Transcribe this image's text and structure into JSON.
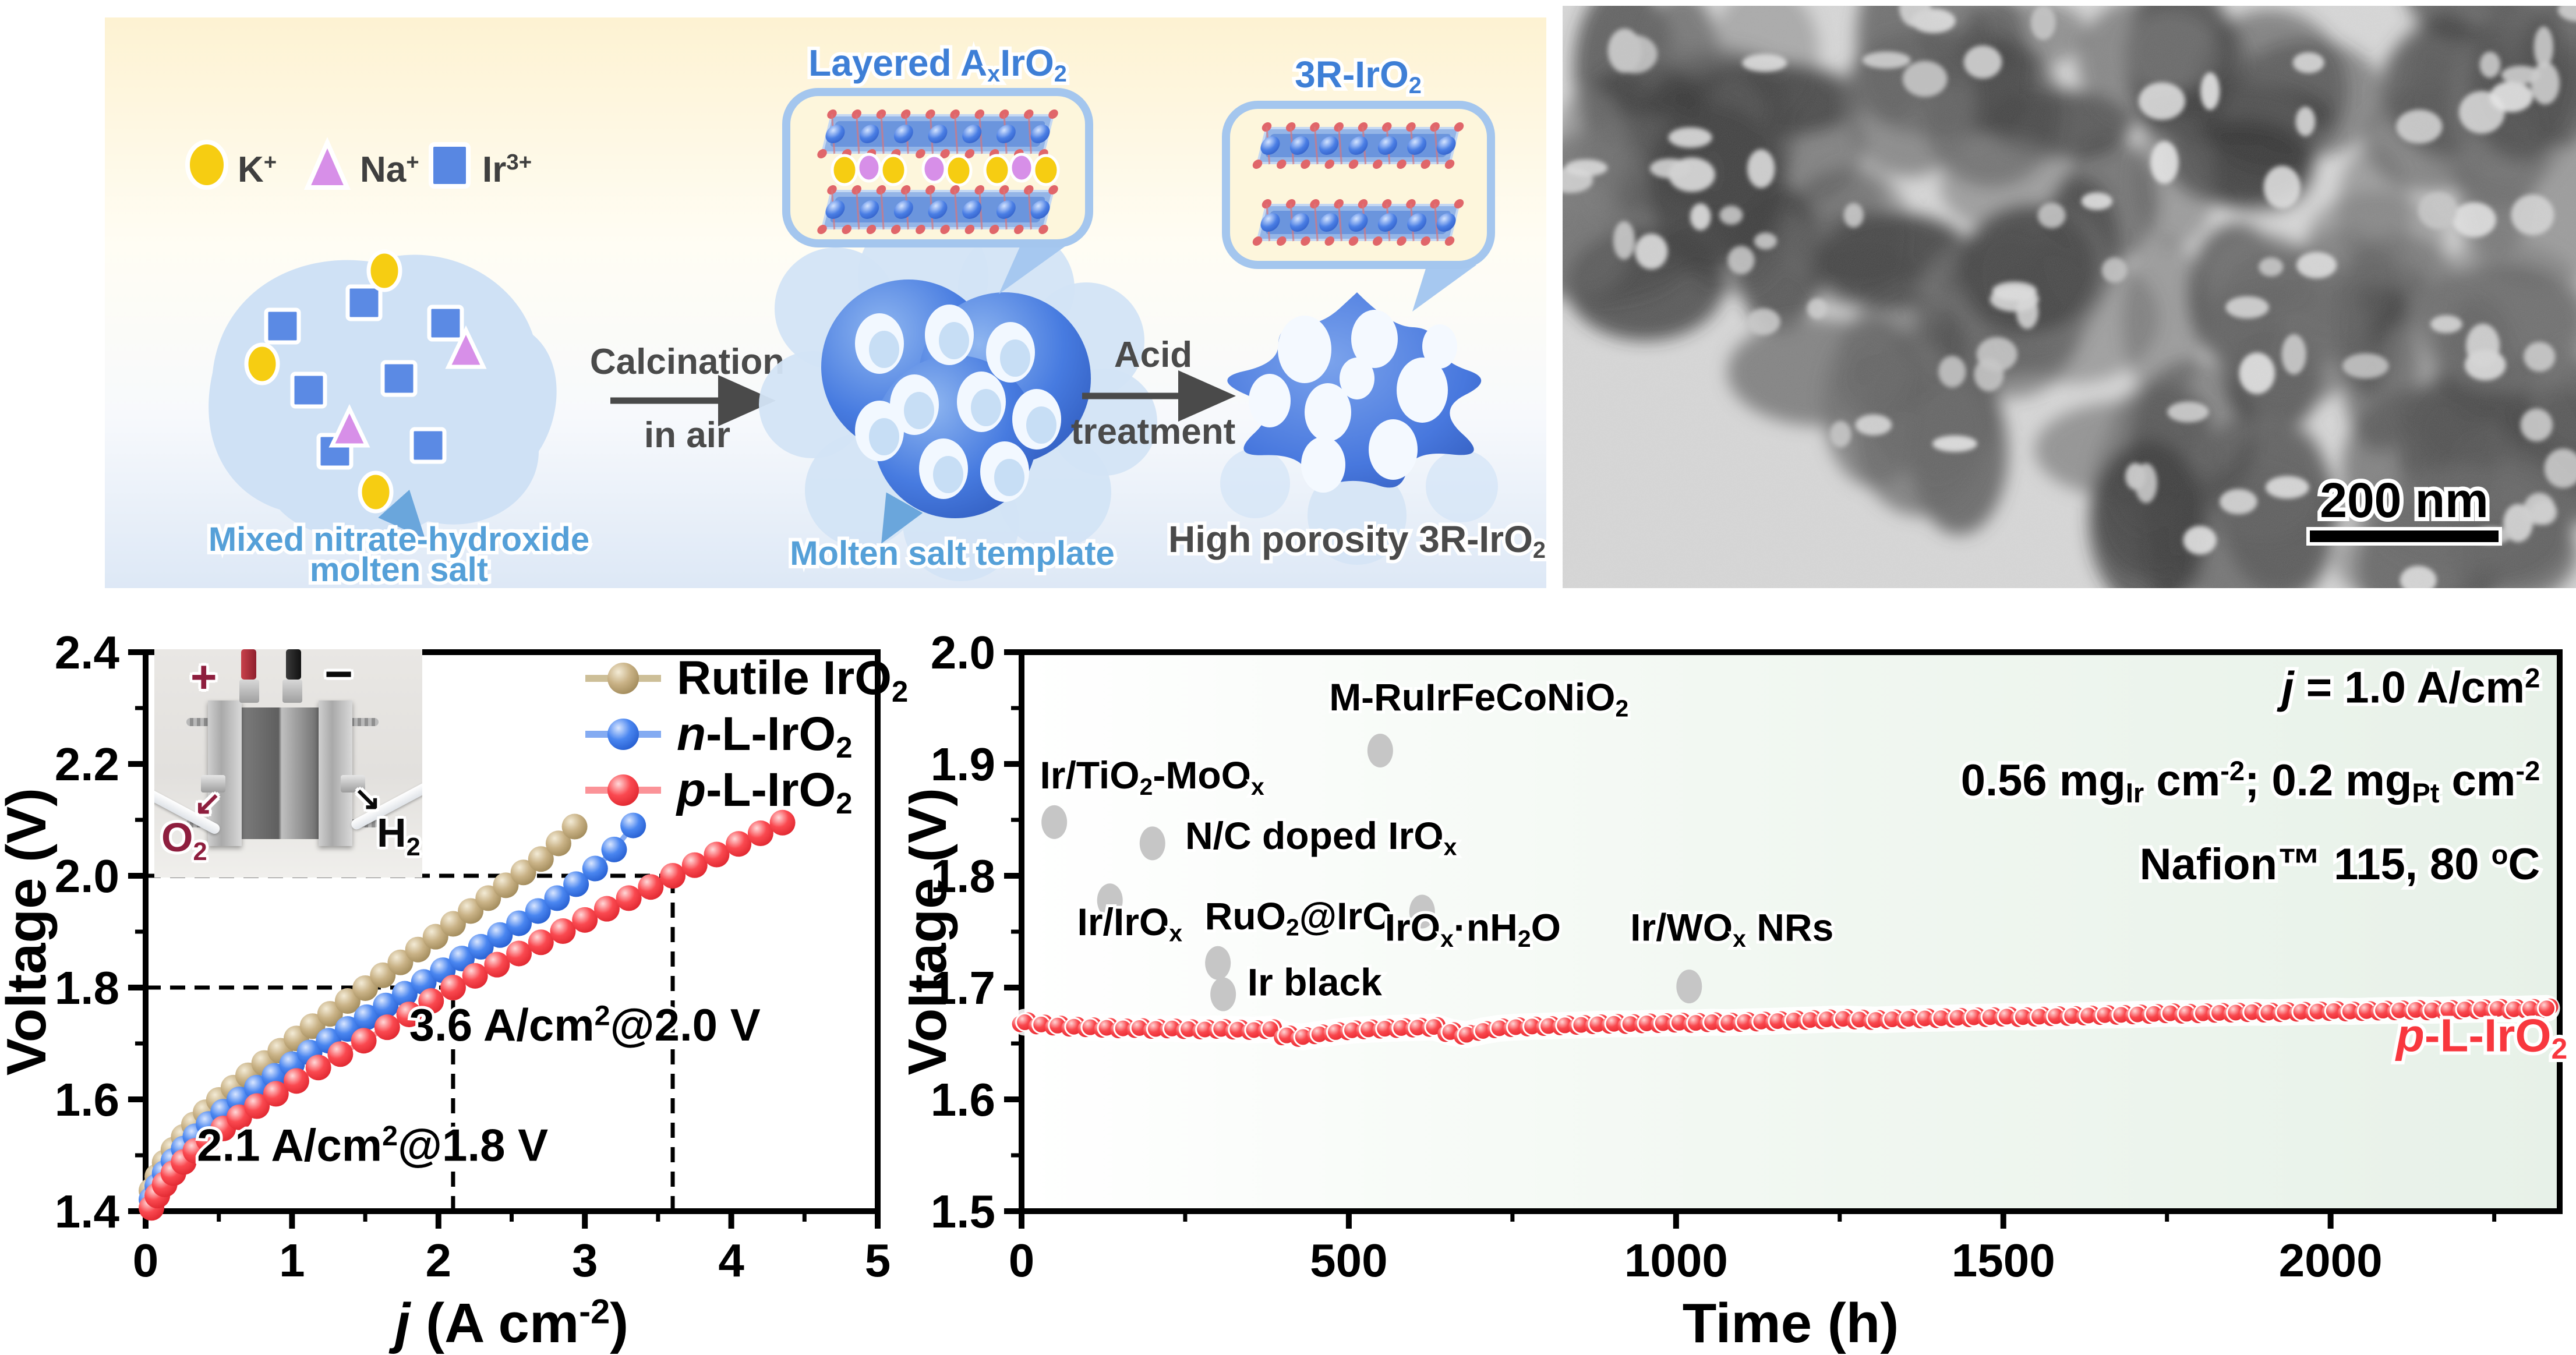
{
  "schematic": {
    "legend": [
      {
        "shape": "ellipse",
        "color": "#f6cd12",
        "label": "K^+^"
      },
      {
        "shape": "triangle",
        "color": "#d78fe8",
        "label": "Na^+^"
      },
      {
        "shape": "square",
        "color": "#5887e2",
        "label": "Ir^3+^"
      }
    ],
    "bubble1_title": "Layered A_x_IrO_2_",
    "bubble2_title": "3R-IrO_2_",
    "step1_line1": "Calcination",
    "step1_line2": "in air",
    "step2_line1": "Acid",
    "step2_line2": "treatment",
    "caption_blob_lines": [
      "Mixed nitrate-hydroxide",
      "molten salt"
    ],
    "caption_cluster": "Molten salt template",
    "caption_product": "High porosity 3R-IrO_2_",
    "text_color_blue": "#55a0d8",
    "text_color_gray": "#4a4a4a"
  },
  "tem": {
    "scale_label": "200 nm"
  },
  "chart_data": [
    {
      "type": "line",
      "title": "",
      "xlabel": "[i]j[/i] (A cm^-2^)",
      "ylabel": "Voltage (V)",
      "xlim": [
        0,
        5
      ],
      "ylim": [
        1.4,
        2.4
      ],
      "xticks": [
        0,
        1,
        2,
        3,
        4,
        5
      ],
      "yticks": [
        1.4,
        1.6,
        1.8,
        2.0,
        2.2,
        2.4
      ],
      "x_minor": [
        0.5,
        1.5,
        2.5,
        3.5,
        4.5
      ],
      "y_minor": [
        1.5,
        1.7,
        1.9,
        2.1,
        2.3
      ],
      "grid": false,
      "legend_position": "top-right-inside",
      "series": [
        {
          "name": "Rutile IrO_2_",
          "color": "#b29a6d",
          "line_color": "#cdbf98",
          "points": [
            [
              0.04,
              1.437
            ],
            [
              0.08,
              1.462
            ],
            [
              0.13,
              1.487
            ],
            [
              0.19,
              1.51
            ],
            [
              0.26,
              1.533
            ],
            [
              0.33,
              1.555
            ],
            [
              0.41,
              1.577
            ],
            [
              0.5,
              1.599
            ],
            [
              0.6,
              1.621
            ],
            [
              0.7,
              1.643
            ],
            [
              0.81,
              1.665
            ],
            [
              0.92,
              1.687
            ],
            [
              1.03,
              1.709
            ],
            [
              1.14,
              1.731
            ],
            [
              1.26,
              1.753
            ],
            [
              1.38,
              1.776
            ],
            [
              1.5,
              1.799
            ],
            [
              1.62,
              1.822
            ],
            [
              1.74,
              1.845
            ],
            [
              1.86,
              1.868
            ],
            [
              1.98,
              1.891
            ],
            [
              2.1,
              1.914
            ],
            [
              2.22,
              1.937
            ],
            [
              2.34,
              1.96
            ],
            [
              2.46,
              1.983
            ],
            [
              2.58,
              2.006
            ],
            [
              2.7,
              2.03
            ],
            [
              2.82,
              2.058
            ],
            [
              2.93,
              2.088
            ]
          ]
        },
        {
          "name": "[i]n[/i]-L-IrO_2_",
          "color": "#2e6fe8",
          "line_color": "#84abf2",
          "points": [
            [
              0.04,
              1.421
            ],
            [
              0.08,
              1.445
            ],
            [
              0.13,
              1.468
            ],
            [
              0.19,
              1.49
            ],
            [
              0.26,
              1.512
            ],
            [
              0.34,
              1.534
            ],
            [
              0.43,
              1.556
            ],
            [
              0.53,
              1.578
            ],
            [
              0.64,
              1.6
            ],
            [
              0.76,
              1.621
            ],
            [
              0.88,
              1.642
            ],
            [
              1.0,
              1.663
            ],
            [
              1.12,
              1.684
            ],
            [
              1.25,
              1.705
            ],
            [
              1.38,
              1.726
            ],
            [
              1.51,
              1.747
            ],
            [
              1.64,
              1.768
            ],
            [
              1.77,
              1.789
            ],
            [
              1.9,
              1.81
            ],
            [
              2.03,
              1.831
            ],
            [
              2.16,
              1.852
            ],
            [
              2.29,
              1.873
            ],
            [
              2.42,
              1.894
            ],
            [
              2.55,
              1.915
            ],
            [
              2.68,
              1.937
            ],
            [
              2.81,
              1.96
            ],
            [
              2.94,
              1.985
            ],
            [
              3.07,
              2.013
            ],
            [
              3.2,
              2.047
            ],
            [
              3.33,
              2.09
            ]
          ]
        },
        {
          "name": "[i]p[/i]-L-IrO_2_",
          "color": "#f8373e",
          "line_color": "#fb9398",
          "points": [
            [
              0.04,
              1.406
            ],
            [
              0.08,
              1.428
            ],
            [
              0.13,
              1.448
            ],
            [
              0.19,
              1.468
            ],
            [
              0.26,
              1.488
            ],
            [
              0.34,
              1.508
            ],
            [
              0.43,
              1.528
            ],
            [
              0.53,
              1.548
            ],
            [
              0.64,
              1.568
            ],
            [
              0.76,
              1.588
            ],
            [
              0.89,
              1.61
            ],
            [
              1.03,
              1.633
            ],
            [
              1.18,
              1.657
            ],
            [
              1.33,
              1.681
            ],
            [
              1.49,
              1.705
            ],
            [
              1.65,
              1.729
            ],
            [
              1.8,
              1.752
            ],
            [
              1.95,
              1.776
            ],
            [
              2.1,
              1.8
            ],
            [
              2.25,
              1.821
            ],
            [
              2.4,
              1.841
            ],
            [
              2.55,
              1.861
            ],
            [
              2.7,
              1.881
            ],
            [
              2.85,
              1.901
            ],
            [
              3.0,
              1.921
            ],
            [
              3.15,
              1.941
            ],
            [
              3.3,
              1.96
            ],
            [
              3.45,
              1.98
            ],
            [
              3.6,
              2.0
            ],
            [
              3.75,
              2.019
            ],
            [
              3.9,
              2.038
            ],
            [
              4.05,
              2.057
            ],
            [
              4.2,
              2.076
            ],
            [
              4.35,
              2.095
            ]
          ]
        }
      ],
      "guides": [
        {
          "type": "h",
          "y": 2.0,
          "x0": 0,
          "x1": 3.6
        },
        {
          "type": "v",
          "x": 3.6,
          "y0": 1.4,
          "y1": 2.0
        },
        {
          "type": "h",
          "y": 1.8,
          "x0": 0,
          "x1": 2.1
        },
        {
          "type": "v",
          "x": 2.1,
          "y0": 1.4,
          "y1": 1.8
        }
      ],
      "annotations": [
        {
          "text": "3.6 A/cm^2^@2.0 V",
          "x": 3.0,
          "y": 1.705
        },
        {
          "text": "2.1 A/cm^2^@1.8 V",
          "x": 1.55,
          "y": 1.49
        }
      ],
      "inset": {
        "plus": "+",
        "minus": "−",
        "o2": "O_2_",
        "h2": "H_2_",
        "o2_arrow": "↙",
        "h2_arrow": "↘"
      }
    },
    {
      "type": "scatter",
      "title": "",
      "xlabel": "Time (h)",
      "ylabel": "Voltage (V)",
      "xlim": [
        0,
        2350
      ],
      "ylim": [
        1.5,
        2.0
      ],
      "xticks": [
        0,
        500,
        1000,
        1500,
        2000
      ],
      "yticks": [
        1.5,
        1.6,
        1.7,
        1.8,
        1.9,
        2.0
      ],
      "x_minor": [
        250,
        750,
        1250,
        1750,
        2250
      ],
      "y_minor": [
        1.55,
        1.65,
        1.75,
        1.85,
        1.95
      ],
      "grid": false,
      "bg_tint": [
        "#ffffff",
        "#f2f8f2",
        "#e7f1e8"
      ],
      "conditions": [
        {
          "text": "[i]j[/i] = 1.0 A/cm^2^",
          "x": 2320,
          "y": 1.955
        },
        {
          "text": "0.56 mg_Ir_ cm^-2^; 0.2 mg_Pt_ cm^-2^",
          "x": 2320,
          "y": 1.872
        },
        {
          "text": "Nafion™ 115, 80 ^o^C",
          "x": 2320,
          "y": 1.797
        }
      ],
      "series_label": {
        "text": "[i]p[/i]-L-IrO_2_",
        "x": 2100,
        "y": 1.643,
        "color": "#f8373e"
      },
      "competitors": [
        {
          "label": "Ir/TiO_2_-MoO_x_",
          "label_x": 28,
          "label_y": 1.878,
          "dot_x": 50,
          "dot_y": 1.848
        },
        {
          "label": "Ir/IrO_x_",
          "label_x": 85,
          "label_y": 1.747,
          "dot_x": 135,
          "dot_y": 1.778
        },
        {
          "label": "N/C doped IrO_x_",
          "label_x": 250,
          "label_y": 1.824,
          "dot_x": 200,
          "dot_y": 1.829
        },
        {
          "label": "RuO_2_@IrO_x_",
          "label_x": 280,
          "label_y": 1.752,
          "dot_x": 300,
          "dot_y": 1.722
        },
        {
          "label": "Ir black",
          "label_x": 345,
          "label_y": 1.693,
          "dot_x": 308,
          "dot_y": 1.694
        },
        {
          "label": "M-RuIrFeCoNiO_2_",
          "label_x": 470,
          "label_y": 1.948,
          "dot_x": 548,
          "dot_y": 1.912
        },
        {
          "label": "IrO_x_·nH_2_O",
          "label_x": 555,
          "label_y": 1.742,
          "dot_x": 612,
          "dot_y": 1.768
        },
        {
          "label": "Ir/WO_x_ NRs",
          "label_x": 930,
          "label_y": 1.742,
          "dot_x": 1020,
          "dot_y": 1.701
        }
      ],
      "stability_series": {
        "name": "[i]p[/i]-L-IrO_2_",
        "color": "#f8373e",
        "points": [
          [
            5,
            1.669
          ],
          [
            30,
            1.667
          ],
          [
            55,
            1.666
          ],
          [
            80,
            1.665
          ],
          [
            105,
            1.6645
          ],
          [
            130,
            1.664
          ],
          [
            155,
            1.6635
          ],
          [
            180,
            1.6638
          ],
          [
            205,
            1.663
          ],
          [
            230,
            1.6634
          ],
          [
            255,
            1.6628
          ],
          [
            280,
            1.6625
          ],
          [
            305,
            1.663
          ],
          [
            330,
            1.6624
          ],
          [
            355,
            1.662
          ],
          [
            380,
            1.6628
          ],
          [
            405,
            1.6572
          ],
          [
            430,
            1.6558
          ],
          [
            455,
            1.6582
          ],
          [
            480,
            1.6602
          ],
          [
            505,
            1.6618
          ],
          [
            530,
            1.6626
          ],
          [
            555,
            1.6632
          ],
          [
            580,
            1.6638
          ],
          [
            605,
            1.6642
          ],
          [
            630,
            1.6648
          ],
          [
            655,
            1.6602
          ],
          [
            680,
            1.6578
          ],
          [
            705,
            1.6612
          ],
          [
            730,
            1.6636
          ],
          [
            755,
            1.6646
          ],
          [
            780,
            1.6652
          ],
          [
            805,
            1.6656
          ],
          [
            830,
            1.6662
          ],
          [
            855,
            1.6666
          ],
          [
            880,
            1.6672
          ],
          [
            905,
            1.6676
          ],
          [
            930,
            1.6674
          ],
          [
            955,
            1.668
          ],
          [
            980,
            1.6682
          ],
          [
            1005,
            1.6686
          ],
          [
            1030,
            1.6684
          ],
          [
            1055,
            1.669
          ],
          [
            1080,
            1.6686
          ],
          [
            1105,
            1.6692
          ],
          [
            1130,
            1.6696
          ],
          [
            1155,
            1.67
          ],
          [
            1180,
            1.6706
          ],
          [
            1205,
            1.671
          ],
          [
            1230,
            1.6716
          ],
          [
            1255,
            1.672
          ],
          [
            1280,
            1.6714
          ],
          [
            1305,
            1.671
          ],
          [
            1330,
            1.6716
          ],
          [
            1355,
            1.672
          ],
          [
            1380,
            1.6724
          ],
          [
            1405,
            1.6726
          ],
          [
            1430,
            1.673
          ],
          [
            1455,
            1.6734
          ],
          [
            1480,
            1.6736
          ],
          [
            1505,
            1.674
          ],
          [
            1530,
            1.6736
          ],
          [
            1555,
            1.674
          ],
          [
            1580,
            1.6744
          ],
          [
            1605,
            1.6746
          ],
          [
            1630,
            1.675
          ],
          [
            1655,
            1.6754
          ],
          [
            1680,
            1.6756
          ],
          [
            1705,
            1.676
          ],
          [
            1730,
            1.6764
          ],
          [
            1755,
            1.677
          ],
          [
            1780,
            1.6766
          ],
          [
            1805,
            1.677
          ],
          [
            1830,
            1.6774
          ],
          [
            1855,
            1.6776
          ],
          [
            1880,
            1.678
          ],
          [
            1905,
            1.6776
          ],
          [
            1930,
            1.678
          ],
          [
            1955,
            1.6784
          ],
          [
            1980,
            1.6786
          ],
          [
            2005,
            1.679
          ],
          [
            2030,
            1.6786
          ],
          [
            2055,
            1.679
          ],
          [
            2080,
            1.6794
          ],
          [
            2105,
            1.6796
          ],
          [
            2130,
            1.68
          ],
          [
            2155,
            1.6796
          ],
          [
            2180,
            1.68
          ],
          [
            2205,
            1.6804
          ],
          [
            2230,
            1.6806
          ],
          [
            2255,
            1.681
          ],
          [
            2280,
            1.6806
          ],
          [
            2305,
            1.681
          ],
          [
            2330,
            1.6814
          ]
        ]
      }
    }
  ]
}
